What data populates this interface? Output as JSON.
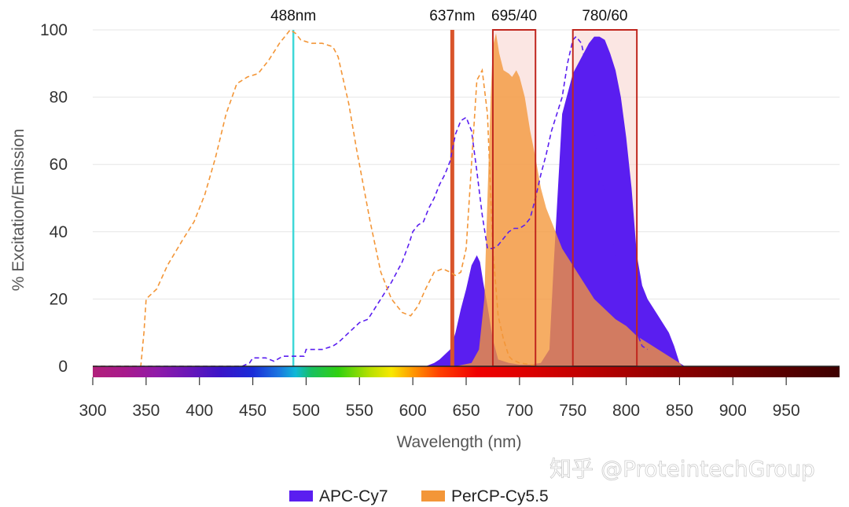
{
  "chart_data": {
    "type": "area",
    "xlabel": "Wavelength (nm)",
    "ylabel": "% Excitation/Emission",
    "xlim": [
      300,
      1000
    ],
    "ylim": [
      0,
      100
    ],
    "x_ticks": [
      300,
      350,
      400,
      450,
      500,
      550,
      600,
      650,
      700,
      750,
      800,
      850,
      900,
      950
    ],
    "y_ticks": [
      0,
      20,
      40,
      60,
      80,
      100
    ],
    "grid": true,
    "legend_position": "bottom",
    "laser_lines": [
      {
        "label": "488nm",
        "wavelength": 488,
        "color": "#3fd8d8"
      },
      {
        "label": "637nm",
        "wavelength": 637,
        "color": "#d9542b"
      }
    ],
    "filters": [
      {
        "label": "695/40",
        "range": [
          675,
          715
        ],
        "edge_color": "#c0261e",
        "fill": "#f7d2cc"
      },
      {
        "label": "780/60",
        "range": [
          750,
          810
        ],
        "edge_color": "#c0261e",
        "fill": "#f7d2cc"
      }
    ],
    "series": [
      {
        "name": "APC-Cy7",
        "color": "#5a1ef0",
        "excitation": {
          "x": [
            300,
            440,
            447,
            450,
            462,
            470,
            478,
            488,
            498,
            500,
            515,
            525,
            530,
            540,
            550,
            558,
            570,
            580,
            590,
            597,
            600,
            605,
            610,
            615,
            620,
            625,
            630,
            635,
            640,
            645,
            650,
            655,
            660,
            665,
            670,
            675,
            680,
            685,
            690,
            695,
            700,
            705,
            710,
            715,
            720,
            725,
            730,
            740,
            745,
            750,
            753,
            758,
            762,
            765,
            770,
            775,
            780,
            785,
            790,
            795,
            800,
            805,
            810,
            815,
            820
          ],
          "y": [
            0,
            0,
            1,
            2.5,
            2.5,
            1.5,
            3,
            3,
            3,
            5,
            5,
            6,
            7,
            10,
            13,
            14,
            20,
            25,
            31,
            37,
            40,
            42,
            43,
            47,
            50,
            54,
            57,
            61,
            69,
            73,
            74,
            70,
            58,
            45,
            35,
            35,
            36,
            38,
            40,
            41,
            41,
            42,
            44,
            50,
            57,
            63,
            70,
            80,
            90,
            97,
            98,
            96,
            90,
            83,
            70,
            60,
            50,
            45,
            33,
            22,
            15,
            12,
            10,
            6,
            5
          ]
        },
        "emission": {
          "x": [
            600,
            612,
            620,
            625,
            635,
            640,
            645,
            650,
            655,
            660,
            663,
            666,
            670,
            675,
            680,
            690,
            700,
            710,
            720,
            728,
            732,
            740,
            750,
            760,
            765,
            770,
            775,
            780,
            785,
            790,
            795,
            800,
            805,
            810,
            815,
            820,
            830,
            840,
            845,
            848,
            850,
            855
          ],
          "y": [
            0,
            0,
            1,
            2,
            5,
            10,
            17,
            23,
            30,
            33,
            31,
            25,
            18,
            8,
            2,
            1,
            0.5,
            0.5,
            1,
            5,
            30,
            75,
            87,
            93,
            96,
            98,
            98,
            97,
            93,
            88,
            80,
            68,
            53,
            33,
            24,
            20,
            15,
            10,
            6,
            3,
            1,
            0
          ]
        }
      },
      {
        "name": "PerCP-Cy5.5",
        "color": "#f39638",
        "excitation": {
          "x": [
            300,
            345,
            348,
            350,
            360,
            370,
            385,
            395,
            405,
            415,
            425,
            435,
            445,
            455,
            465,
            475,
            480,
            485,
            490,
            495,
            505,
            515,
            525,
            530,
            540,
            547,
            560,
            570,
            580,
            590,
            598,
            605,
            612,
            620,
            628,
            635,
            640,
            645,
            650,
            655,
            660,
            665,
            670,
            675,
            680,
            685,
            688,
            690,
            693,
            700,
            710,
            720
          ],
          "y": [
            0,
            0,
            10,
            20,
            23,
            30,
            38,
            43,
            51,
            62,
            75,
            84,
            86,
            87,
            91,
            96,
            98,
            100,
            99,
            97,
            96,
            96,
            95,
            92,
            78,
            65,
            43,
            28,
            20,
            16,
            15,
            18,
            23,
            28,
            29,
            28,
            27,
            28,
            35,
            60,
            85,
            88,
            75,
            35,
            15,
            8,
            5,
            3,
            2,
            1,
            0.5,
            0
          ]
        },
        "emission": {
          "x": [
            620,
            640,
            655,
            662,
            667,
            670,
            673,
            675,
            678,
            681,
            685,
            690,
            693,
            697,
            700,
            705,
            710,
            715,
            720,
            725,
            730,
            740,
            750,
            760,
            770,
            780,
            790,
            800,
            810,
            820,
            830,
            840,
            850,
            853
          ],
          "y": [
            0,
            0,
            1,
            5,
            20,
            50,
            80,
            95,
            99,
            93,
            88,
            87,
            86,
            88,
            86,
            80,
            70,
            62,
            53,
            47,
            43,
            35,
            30,
            25,
            20,
            17,
            14,
            12,
            9,
            7,
            5,
            3,
            1,
            0
          ]
        }
      }
    ]
  },
  "watermark": "知乎 @ProteintechGroup"
}
